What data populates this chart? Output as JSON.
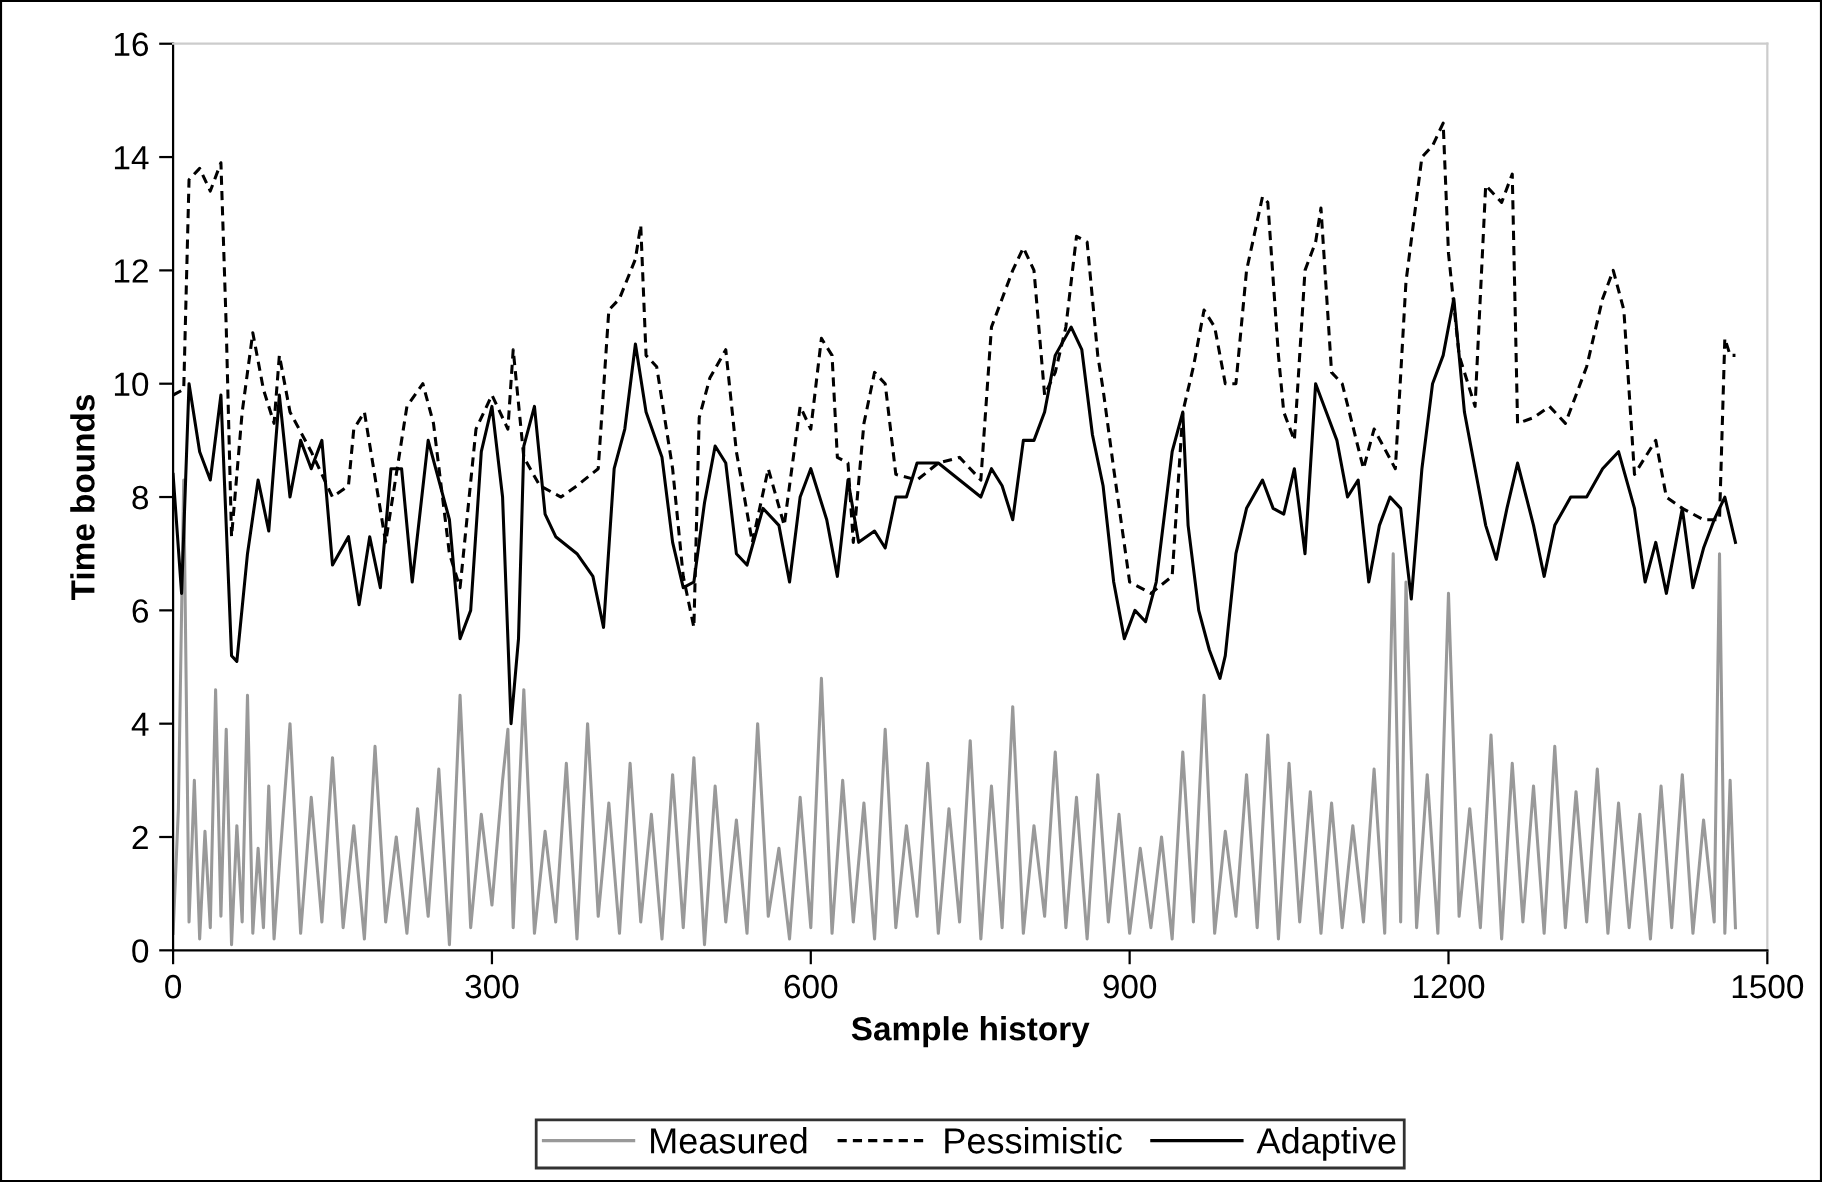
{
  "chart_data": {
    "type": "line",
    "xlabel": "Sample history",
    "ylabel": "Time bounds",
    "xlim": [
      0,
      1500
    ],
    "xticks": [
      0,
      300,
      600,
      900,
      1200,
      1500
    ],
    "ylim": [
      0,
      16
    ],
    "yticks": [
      0,
      2,
      4,
      6,
      8,
      10,
      12,
      14,
      16
    ],
    "grid": false,
    "legend": "bottom",
    "marker": "none",
    "series": [
      {
        "name": "Measured",
        "color": "#999999",
        "line_style": "solid",
        "x": [
          0,
          5,
          10,
          15,
          20,
          25,
          30,
          35,
          40,
          45,
          50,
          55,
          60,
          65,
          70,
          75,
          80,
          85,
          90,
          95,
          100,
          110,
          120,
          130,
          140,
          150,
          160,
          170,
          180,
          190,
          200,
          210,
          220,
          230,
          240,
          250,
          260,
          270,
          280,
          290,
          300,
          310,
          315,
          320,
          330,
          340,
          350,
          360,
          370,
          380,
          390,
          400,
          410,
          420,
          430,
          440,
          450,
          460,
          470,
          480,
          490,
          500,
          510,
          520,
          530,
          540,
          550,
          560,
          570,
          580,
          590,
          600,
          610,
          620,
          630,
          640,
          650,
          660,
          670,
          680,
          690,
          700,
          710,
          720,
          730,
          740,
          750,
          760,
          770,
          780,
          790,
          800,
          810,
          820,
          830,
          840,
          850,
          860,
          870,
          880,
          890,
          900,
          910,
          920,
          930,
          940,
          950,
          960,
          970,
          980,
          990,
          1000,
          1010,
          1020,
          1030,
          1040,
          1050,
          1060,
          1070,
          1080,
          1090,
          1100,
          1110,
          1120,
          1130,
          1140,
          1148,
          1155,
          1160,
          1170,
          1180,
          1190,
          1200,
          1210,
          1220,
          1230,
          1240,
          1250,
          1260,
          1270,
          1280,
          1290,
          1300,
          1310,
          1320,
          1330,
          1340,
          1350,
          1360,
          1370,
          1380,
          1390,
          1400,
          1410,
          1420,
          1430,
          1440,
          1450,
          1455,
          1460,
          1465,
          1470
        ],
        "values": [
          0.3,
          2.5,
          8.3,
          0.5,
          3.0,
          0.2,
          2.1,
          0.4,
          4.6,
          0.6,
          3.9,
          0.1,
          2.2,
          0.5,
          4.5,
          0.3,
          1.8,
          0.4,
          2.9,
          0.2,
          1.5,
          4.0,
          0.3,
          2.7,
          0.5,
          3.4,
          0.4,
          2.2,
          0.2,
          3.6,
          0.5,
          2.0,
          0.3,
          2.5,
          0.6,
          3.2,
          0.1,
          4.5,
          0.4,
          2.4,
          0.8,
          3.0,
          3.9,
          0.4,
          4.6,
          0.3,
          2.1,
          0.5,
          3.3,
          0.2,
          4.0,
          0.6,
          2.6,
          0.3,
          3.3,
          0.5,
          2.4,
          0.2,
          3.1,
          0.4,
          3.4,
          0.1,
          2.9,
          0.5,
          2.3,
          0.3,
          4.0,
          0.6,
          1.8,
          0.2,
          2.7,
          0.4,
          4.8,
          0.3,
          3.0,
          0.5,
          2.6,
          0.2,
          3.9,
          0.4,
          2.2,
          0.6,
          3.3,
          0.3,
          2.5,
          0.5,
          3.7,
          0.2,
          2.9,
          0.4,
          4.3,
          0.3,
          2.2,
          0.6,
          3.5,
          0.4,
          2.7,
          0.2,
          3.1,
          0.5,
          2.4,
          0.3,
          1.8,
          0.4,
          2.0,
          0.2,
          3.5,
          0.5,
          4.5,
          0.3,
          2.1,
          0.6,
          3.1,
          0.4,
          3.8,
          0.2,
          3.3,
          0.5,
          2.8,
          0.3,
          2.6,
          0.4,
          2.2,
          0.5,
          3.2,
          0.3,
          7.0,
          0.5,
          6.5,
          0.4,
          3.1,
          0.3,
          6.3,
          0.6,
          2.5,
          0.4,
          3.8,
          0.2,
          3.3,
          0.5,
          2.9,
          0.3,
          3.6,
          0.4,
          2.8,
          0.5,
          3.2,
          0.3,
          2.6,
          0.4,
          2.4,
          0.2,
          2.9,
          0.4,
          3.1,
          0.3,
          2.3,
          0.5,
          7.0,
          0.3,
          3.0,
          0.4
        ]
      },
      {
        "name": "Pessimistic",
        "color": "#000000",
        "line_style": "dashed",
        "x": [
          0,
          10,
          15,
          25,
          35,
          45,
          50,
          55,
          65,
          75,
          85,
          95,
          100,
          110,
          130,
          150,
          165,
          170,
          180,
          200,
          220,
          235,
          245,
          260,
          270,
          285,
          300,
          315,
          320,
          330,
          345,
          365,
          380,
          400,
          410,
          420,
          435,
          440,
          445,
          455,
          470,
          480,
          490,
          495,
          505,
          520,
          530,
          545,
          560,
          575,
          590,
          600,
          610,
          620,
          625,
          635,
          640,
          650,
          660,
          670,
          680,
          700,
          720,
          740,
          760,
          770,
          780,
          790,
          800,
          810,
          820,
          830,
          840,
          850,
          860,
          870,
          875,
          885,
          900,
          920,
          940,
          950,
          960,
          970,
          980,
          990,
          1000,
          1010,
          1025,
          1030,
          1040,
          1045,
          1055,
          1065,
          1075,
          1080,
          1090,
          1100,
          1120,
          1130,
          1150,
          1160,
          1175,
          1185,
          1195,
          1200,
          1210,
          1225,
          1235,
          1250,
          1260,
          1265,
          1280,
          1295,
          1310,
          1330,
          1345,
          1355,
          1365,
          1375,
          1385,
          1395,
          1405,
          1420,
          1440,
          1455,
          1460,
          1465,
          1470
        ],
        "values": [
          9.8,
          9.9,
          13.6,
          13.8,
          13.4,
          13.9,
          11.0,
          7.3,
          9.5,
          10.9,
          9.9,
          9.3,
          10.5,
          9.5,
          8.8,
          8.0,
          8.2,
          9.2,
          9.5,
          7.2,
          9.6,
          10.0,
          9.3,
          7.0,
          6.4,
          9.2,
          9.8,
          9.2,
          10.6,
          8.7,
          8.2,
          8.0,
          8.2,
          8.5,
          11.3,
          11.5,
          12.2,
          12.8,
          10.5,
          10.3,
          8.5,
          6.6,
          5.7,
          9.4,
          10.1,
          10.6,
          8.8,
          7.2,
          8.5,
          7.5,
          9.6,
          9.2,
          10.8,
          10.5,
          8.7,
          8.6,
          7.2,
          9.3,
          10.2,
          10.0,
          8.4,
          8.3,
          8.6,
          8.7,
          8.3,
          11.0,
          11.5,
          12.0,
          12.4,
          12.0,
          9.8,
          10.2,
          11.0,
          12.6,
          12.5,
          10.5,
          9.9,
          8.5,
          6.5,
          6.3,
          6.6,
          9.5,
          10.3,
          11.3,
          11.0,
          10.0,
          10.0,
          12.0,
          13.3,
          13.2,
          10.5,
          9.5,
          9.0,
          12.0,
          12.5,
          13.1,
          10.2,
          10.0,
          8.5,
          9.2,
          8.5,
          11.8,
          14.0,
          14.2,
          14.6,
          12.3,
          10.5,
          9.6,
          13.5,
          13.2,
          13.7,
          9.3,
          9.4,
          9.6,
          9.3,
          10.3,
          11.5,
          12.0,
          11.3,
          8.4,
          8.7,
          9.0,
          8.0,
          7.8,
          7.6,
          7.6,
          10.8,
          10.5,
          10.5
        ]
      },
      {
        "name": "Adaptive",
        "color": "#000000",
        "line_style": "solid",
        "x": [
          0,
          8,
          15,
          25,
          35,
          45,
          55,
          60,
          70,
          80,
          90,
          100,
          110,
          120,
          130,
          140,
          150,
          165,
          175,
          185,
          195,
          205,
          215,
          225,
          240,
          250,
          260,
          270,
          280,
          290,
          300,
          310,
          318,
          325,
          330,
          340,
          350,
          360,
          380,
          395,
          405,
          415,
          425,
          435,
          445,
          460,
          470,
          480,
          490,
          500,
          510,
          520,
          530,
          540,
          555,
          570,
          580,
          590,
          600,
          615,
          625,
          635,
          645,
          660,
          670,
          680,
          690,
          700,
          720,
          740,
          760,
          770,
          780,
          790,
          800,
          810,
          820,
          830,
          845,
          855,
          865,
          875,
          885,
          895,
          905,
          915,
          925,
          940,
          950,
          955,
          965,
          975,
          985,
          990,
          1000,
          1010,
          1025,
          1035,
          1045,
          1055,
          1065,
          1075,
          1085,
          1095,
          1105,
          1115,
          1125,
          1135,
          1145,
          1155,
          1165,
          1175,
          1185,
          1195,
          1205,
          1215,
          1225,
          1235,
          1245,
          1255,
          1265,
          1280,
          1290,
          1300,
          1315,
          1330,
          1345,
          1360,
          1375,
          1385,
          1395,
          1405,
          1420,
          1430,
          1440,
          1450,
          1460,
          1470
        ],
        "values": [
          8.4,
          6.3,
          10.0,
          8.8,
          8.3,
          9.8,
          5.2,
          5.1,
          7.0,
          8.3,
          7.4,
          9.8,
          8.0,
          9.0,
          8.5,
          9.0,
          6.8,
          7.3,
          6.1,
          7.3,
          6.4,
          8.5,
          8.5,
          6.5,
          9.0,
          8.3,
          7.6,
          5.5,
          6.0,
          8.8,
          9.6,
          8.0,
          4.0,
          5.5,
          8.9,
          9.6,
          7.7,
          7.3,
          7.0,
          6.6,
          5.7,
          8.5,
          9.2,
          10.7,
          9.5,
          8.7,
          7.2,
          6.4,
          6.5,
          7.9,
          8.9,
          8.6,
          7.0,
          6.8,
          7.8,
          7.5,
          6.5,
          8.0,
          8.5,
          7.6,
          6.6,
          8.3,
          7.2,
          7.4,
          7.1,
          8.0,
          8.0,
          8.6,
          8.6,
          8.3,
          8.0,
          8.5,
          8.2,
          7.6,
          9.0,
          9.0,
          9.5,
          10.5,
          11.0,
          10.6,
          9.1,
          8.2,
          6.5,
          5.5,
          6.0,
          5.8,
          6.5,
          8.8,
          9.5,
          7.5,
          6.0,
          5.3,
          4.8,
          5.2,
          7.0,
          7.8,
          8.3,
          7.8,
          7.7,
          8.5,
          7.0,
          10.0,
          9.5,
          9.0,
          8.0,
          8.3,
          6.5,
          7.5,
          8.0,
          7.8,
          6.2,
          8.5,
          10.0,
          10.5,
          11.5,
          9.5,
          8.5,
          7.5,
          6.9,
          7.8,
          8.6,
          7.5,
          6.6,
          7.5,
          8.0,
          8.0,
          8.5,
          8.8,
          7.8,
          6.5,
          7.2,
          6.3,
          7.8,
          6.4,
          7.1,
          7.6,
          8.0,
          7.2
        ]
      }
    ]
  }
}
